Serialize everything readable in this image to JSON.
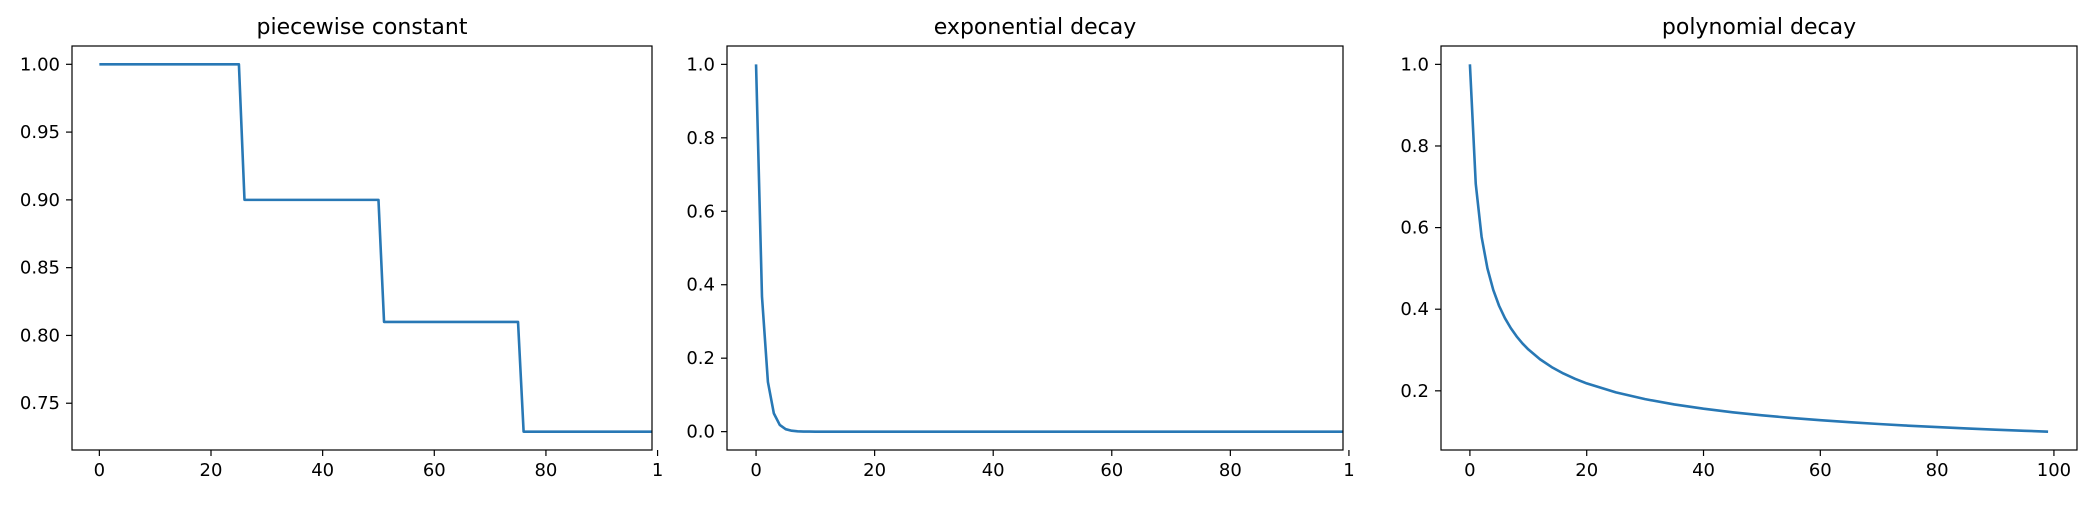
{
  "chart_data": [
    {
      "type": "line",
      "title": "piecewise constant",
      "xlabel": "",
      "ylabel": "",
      "x_ticks": [
        "0",
        "20",
        "40",
        "60",
        "80",
        "1"
      ],
      "y_ticks": [
        "0.75",
        "0.80",
        "0.85",
        "0.90",
        "0.95",
        "1.00"
      ],
      "xlim": [
        -4.9,
        99
      ],
      "ylim": [
        0.7155,
        1.0135
      ],
      "grid": false,
      "color": "#2878b5",
      "series": [
        {
          "x": [
            0,
            25,
            26,
            50,
            51,
            75,
            76,
            99
          ],
          "y": [
            1.0,
            1.0,
            0.9,
            0.9,
            0.81,
            0.81,
            0.729,
            0.729
          ]
        }
      ]
    },
    {
      "type": "line",
      "title": "exponential decay",
      "xlabel": "",
      "ylabel": "",
      "x_ticks": [
        "0",
        "20",
        "40",
        "60",
        "80",
        "1"
      ],
      "y_ticks": [
        "0.0",
        "0.2",
        "0.4",
        "0.6",
        "0.8",
        "1.0"
      ],
      "xlim": [
        -4.9,
        99
      ],
      "ylim": [
        -0.05,
        1.05
      ],
      "grid": false,
      "color": "#2878b5",
      "series": [
        {
          "x": [
            0,
            1,
            2,
            3,
            4,
            5,
            6,
            7,
            8,
            9,
            10,
            15,
            20,
            30,
            40,
            50,
            60,
            70,
            80,
            90,
            99
          ],
          "y": [
            1.0,
            0.3679,
            0.1353,
            0.0498,
            0.0183,
            0.0067,
            0.0025,
            0.0009,
            0.0003,
            0.0001,
            0.0,
            0.0,
            0.0,
            0.0,
            0.0,
            0.0,
            0.0,
            0.0,
            0.0,
            0.0,
            0.0
          ]
        }
      ]
    },
    {
      "type": "line",
      "title": "polynomial decay",
      "xlabel": "",
      "ylabel": "",
      "x_ticks": [
        "0",
        "20",
        "40",
        "60",
        "80",
        "100"
      ],
      "y_ticks": [
        "0.2",
        "0.4",
        "0.6",
        "0.8",
        "1.0"
      ],
      "xlim": [
        -4.95,
        103.95
      ],
      "ylim": [
        0.055,
        1.045
      ],
      "grid": false,
      "color": "#2878b5",
      "series": [
        {
          "x": [
            0,
            1,
            2,
            3,
            4,
            5,
            6,
            7,
            8,
            9,
            10,
            12,
            14,
            16,
            18,
            20,
            25,
            30,
            35,
            40,
            45,
            50,
            55,
            60,
            65,
            70,
            75,
            80,
            85,
            90,
            95,
            99
          ],
          "y": [
            1.0,
            0.7071,
            0.5774,
            0.5,
            0.4472,
            0.4082,
            0.378,
            0.3536,
            0.3333,
            0.3162,
            0.3015,
            0.2774,
            0.2582,
            0.2425,
            0.2294,
            0.2182,
            0.1961,
            0.1796,
            0.1667,
            0.1562,
            0.1474,
            0.14,
            0.1336,
            0.128,
            0.1231,
            0.1187,
            0.1147,
            0.1111,
            0.1078,
            0.1048,
            0.1021,
            0.1
          ]
        }
      ]
    }
  ]
}
